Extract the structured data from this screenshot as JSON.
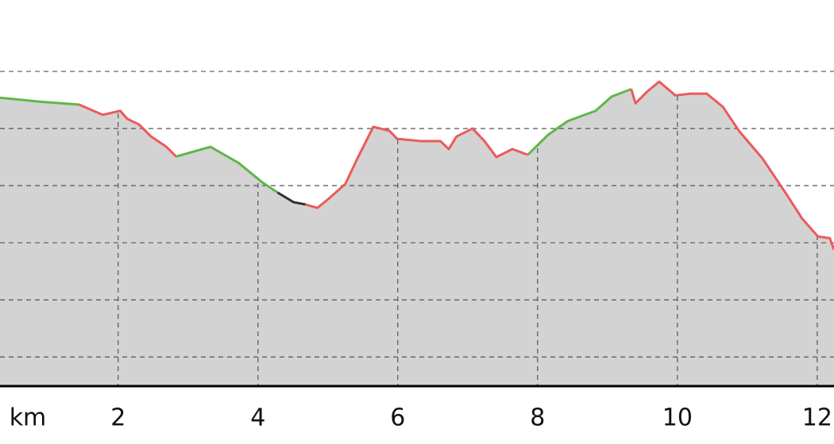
{
  "chart_data": {
    "type": "elevation-profile",
    "x_label": "km",
    "xlim": [
      0.31,
      12.24
    ],
    "ylim": [
      0.49,
      7.25
    ],
    "xticks": [
      2,
      4,
      6,
      8,
      10,
      12
    ],
    "yticks": [
      1,
      2,
      3,
      4,
      5,
      6
    ],
    "grid": true,
    "fill_color": "#d3d3d3",
    "segments": [
      {
        "color": "#5db84a",
        "x": [
          0.31,
          0.88,
          1.44
        ],
        "values": [
          5.54,
          5.47,
          5.42
        ]
      },
      {
        "color": "#ec5a5a",
        "x": [
          1.44,
          1.78,
          2.03,
          2.13,
          2.3,
          2.47,
          2.69,
          2.83
        ],
        "values": [
          5.42,
          5.24,
          5.31,
          5.17,
          5.07,
          4.86,
          4.68,
          4.51
        ]
      },
      {
        "color": "#5db84a",
        "x": [
          2.83,
          3.32,
          3.72,
          4.06,
          4.28
        ],
        "values": [
          4.51,
          4.68,
          4.4,
          4.06,
          3.88
        ]
      },
      {
        "color": "#333333",
        "x": [
          4.28,
          4.51,
          4.68
        ],
        "values": [
          3.88,
          3.71,
          3.67
        ]
      },
      {
        "color": "#ec5a5a",
        "x": [
          4.68,
          4.85,
          5.02,
          5.25,
          5.42,
          5.65,
          5.88,
          5.99,
          6.33,
          6.61,
          6.73,
          6.84,
          7.07,
          7.24,
          7.41,
          7.64,
          7.86
        ],
        "values": [
          3.67,
          3.61,
          3.78,
          4.03,
          4.47,
          5.03,
          4.96,
          4.82,
          4.78,
          4.78,
          4.64,
          4.86,
          5.0,
          4.78,
          4.5,
          4.64,
          4.54
        ]
      },
      {
        "color": "#5db84a",
        "x": [
          7.86,
          8.15,
          8.43,
          8.83,
          9.06,
          9.34
        ],
        "values": [
          4.54,
          4.89,
          5.13,
          5.31,
          5.56,
          5.69
        ]
      },
      {
        "color": "#ec5a5a",
        "x": [
          9.34,
          9.4,
          9.57,
          9.74,
          9.97,
          10.19,
          10.42,
          10.65,
          10.88,
          11.22,
          11.56,
          11.78,
          12.01,
          12.18,
          12.24
        ],
        "values": [
          5.69,
          5.44,
          5.65,
          5.82,
          5.58,
          5.61,
          5.61,
          5.38,
          4.96,
          4.47,
          3.85,
          3.43,
          3.11,
          3.08,
          2.88
        ]
      }
    ]
  }
}
